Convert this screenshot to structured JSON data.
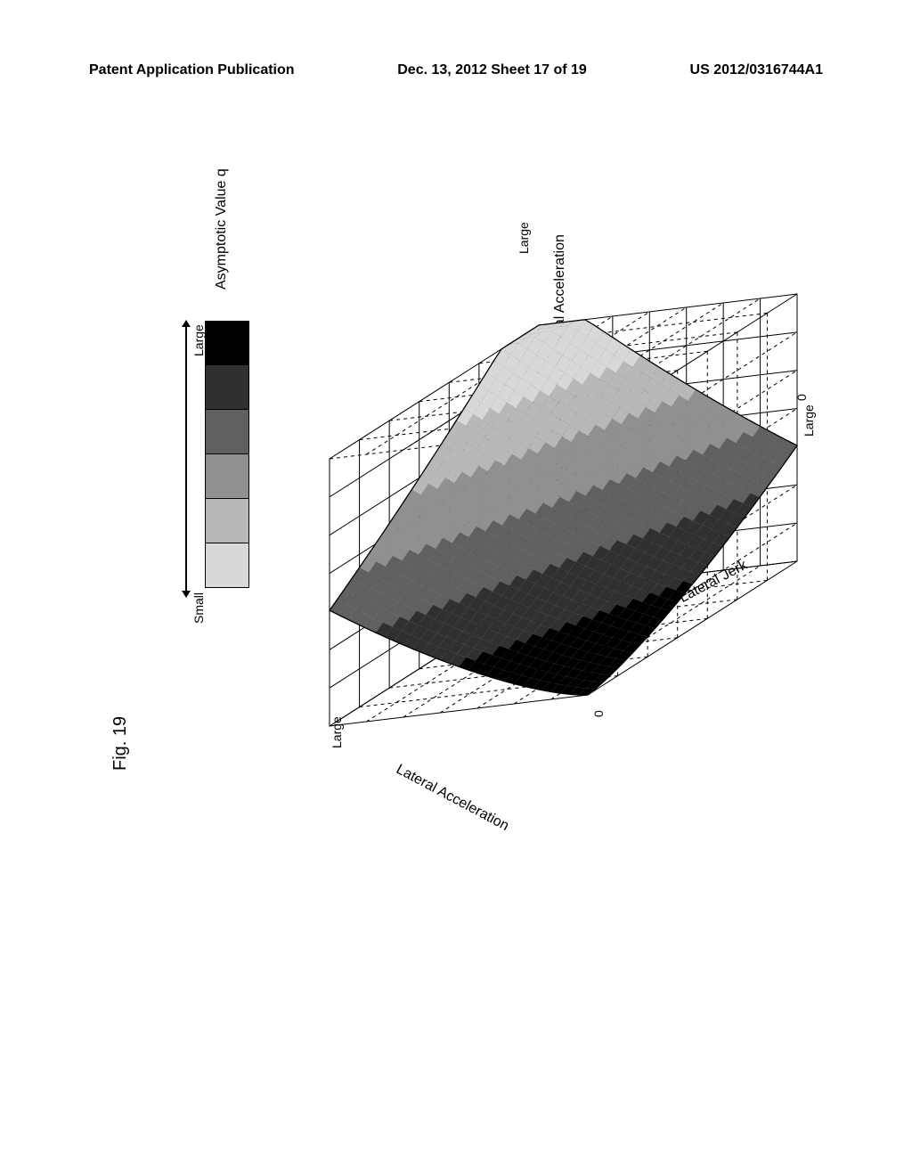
{
  "header": {
    "left": "Patent Application Publication",
    "center": "Dec. 13, 2012  Sheet 17 of 19",
    "right": "US 2012/0316744A1"
  },
  "figure": {
    "label": "Fig. 19",
    "legend": {
      "title": "Asymptotic Value q",
      "top_label": "Large",
      "bottom_label": "Small",
      "swatches": [
        "#000000",
        "#303030",
        "#606060",
        "#909090",
        "#b8b8b8",
        "#d8d8d8"
      ]
    },
    "axes": {
      "z": {
        "label": "Changing Rate of Longitudinal Acceleration",
        "tick_top": "Large",
        "tick_bottom": "0"
      },
      "x": {
        "label": "Lateral Acceleration",
        "tick_near": "Large",
        "tick_far": "0"
      },
      "y": {
        "label": "Lateral Jerk",
        "tick_near": "0",
        "tick_far": "Large"
      }
    },
    "surface": {
      "type": "3d-surface",
      "description": "Monotonically increasing surface from front-left (0,0) low to back-right (large,large) high",
      "grid_color": "#000000",
      "face_colors": [
        "#d8d8d8",
        "#b8b8b8",
        "#909090",
        "#606060",
        "#303030",
        "#000000"
      ],
      "background_color": "#ffffff",
      "cube_grid_divisions": 7
    }
  }
}
